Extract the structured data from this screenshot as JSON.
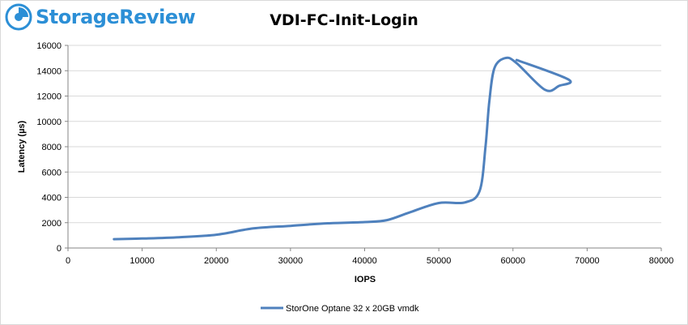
{
  "brand": {
    "name": "StorageReview",
    "color": "#2c8fd6"
  },
  "chart_data": {
    "type": "line",
    "title": "VDI-FC-Init-Login",
    "xlabel": "IOPS",
    "ylabel": "Latency (µs)",
    "xlim": [
      0,
      80000
    ],
    "ylim": [
      0,
      16000
    ],
    "xticks": [
      0,
      10000,
      20000,
      30000,
      40000,
      50000,
      60000,
      70000,
      80000
    ],
    "yticks": [
      0,
      2000,
      4000,
      6000,
      8000,
      10000,
      12000,
      14000,
      16000
    ],
    "grid": "horizontal",
    "legend": "bottom",
    "series": [
      {
        "name": "StorOne Optane 32 x 20GB vmdk",
        "color": "#4f81bd",
        "x": [
          6200,
          10000,
          15000,
          20000,
          25000,
          30000,
          35000,
          40000,
          43000,
          46000,
          50000,
          53500,
          55500,
          56300,
          56800,
          57500,
          59000,
          60500,
          64300,
          66200,
          67500,
          60500
        ],
        "y": [
          700,
          750,
          850,
          1050,
          1550,
          1750,
          1950,
          2050,
          2200,
          2800,
          3550,
          3600,
          4500,
          8000,
          11500,
          14200,
          15000,
          14600,
          12500,
          12800,
          13300,
          14850
        ]
      }
    ]
  }
}
